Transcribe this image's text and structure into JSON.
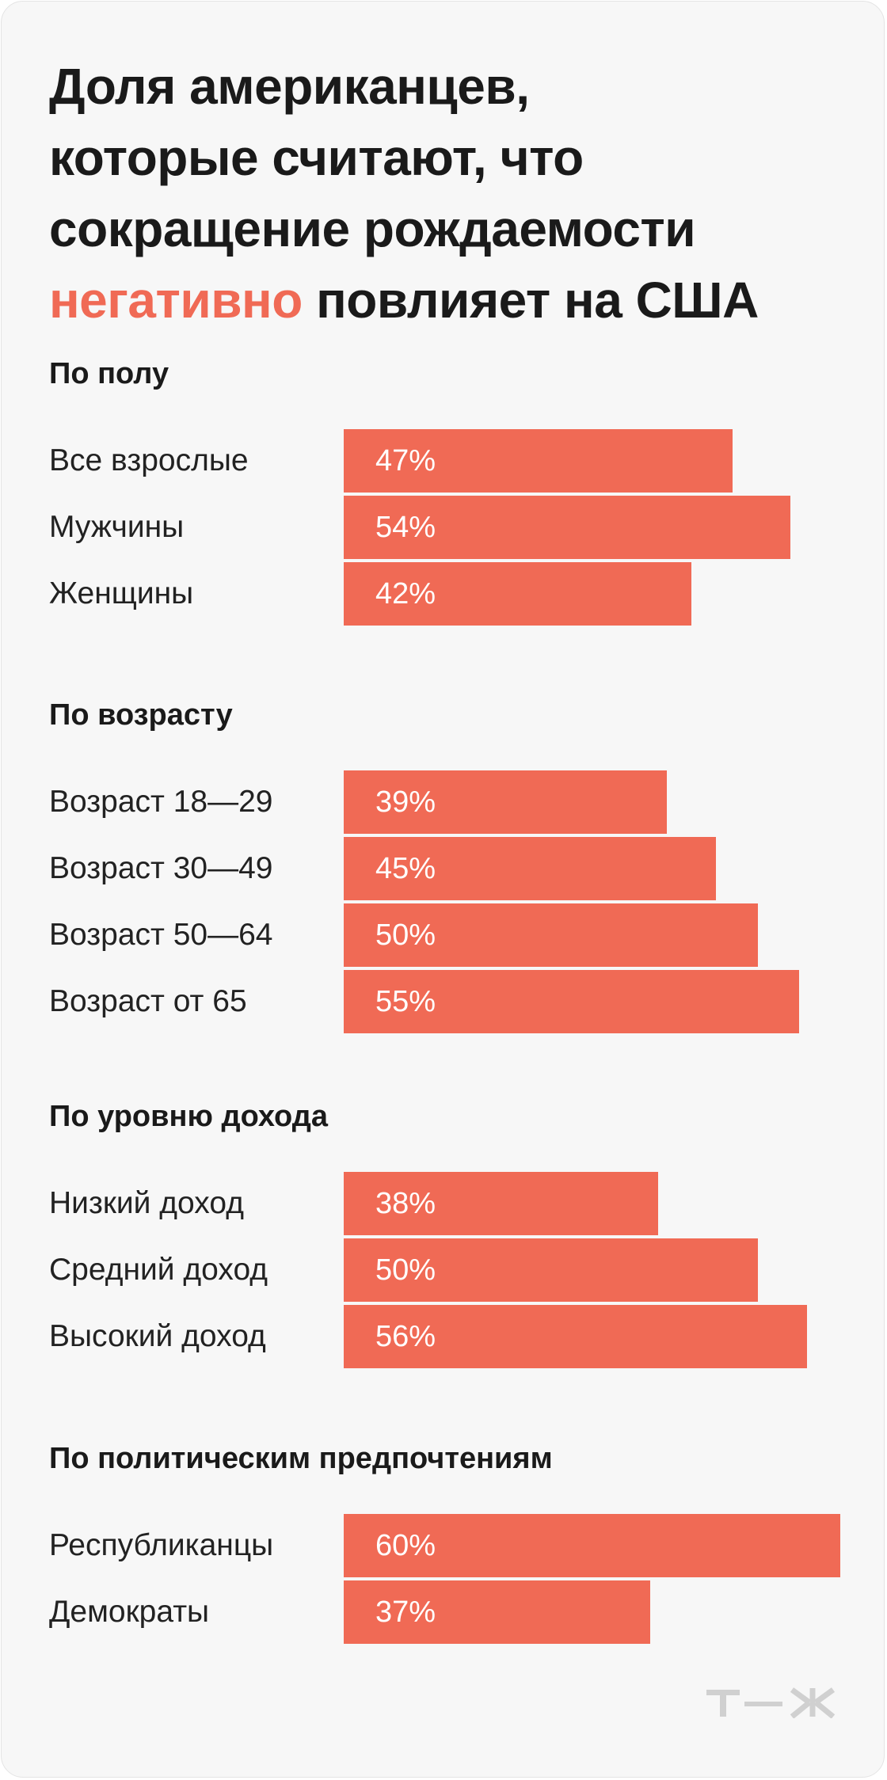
{
  "title": {
    "line1": "Доля американцев,",
    "line2": "которые считают, что",
    "line3": "сокращение рождаемости",
    "accent": "негативно",
    "rest": " повлияет на США"
  },
  "colors": {
    "bar": "#f06a55",
    "accent": "#f06a55",
    "background": "#f7f7f7",
    "logo": "#d0d0d0"
  },
  "logo_icon": "tzh-logo-icon",
  "chart_data": {
    "type": "bar",
    "orientation": "horizontal",
    "unit": "%",
    "xlim": [
      0,
      60
    ],
    "grid": false,
    "groups": [
      {
        "title": "По полу",
        "items": [
          {
            "label": "Все взрослые",
            "value": 47,
            "value_label": "47%"
          },
          {
            "label": "Мужчины",
            "value": 54,
            "value_label": "54%"
          },
          {
            "label": "Женщины",
            "value": 42,
            "value_label": "42%"
          }
        ]
      },
      {
        "title": "По возрасту",
        "items": [
          {
            "label": "Возраст 18—29",
            "value": 39,
            "value_label": "39%"
          },
          {
            "label": "Возраст 30—49",
            "value": 45,
            "value_label": "45%"
          },
          {
            "label": "Возраст 50—64",
            "value": 50,
            "value_label": "50%"
          },
          {
            "label": "Возраст от 65",
            "value": 55,
            "value_label": "55%"
          }
        ]
      },
      {
        "title": "По уровню дохода",
        "items": [
          {
            "label": "Низкий доход",
            "value": 38,
            "value_label": "38%"
          },
          {
            "label": "Средний доход",
            "value": 50,
            "value_label": "50%"
          },
          {
            "label": "Высокий доход",
            "value": 56,
            "value_label": "56%"
          }
        ]
      },
      {
        "title": "По политическим предпочтениям",
        "items": [
          {
            "label": "Республиканцы",
            "value": 60,
            "value_label": "60%"
          },
          {
            "label": "Демократы",
            "value": 37,
            "value_label": "37%"
          }
        ]
      }
    ]
  }
}
